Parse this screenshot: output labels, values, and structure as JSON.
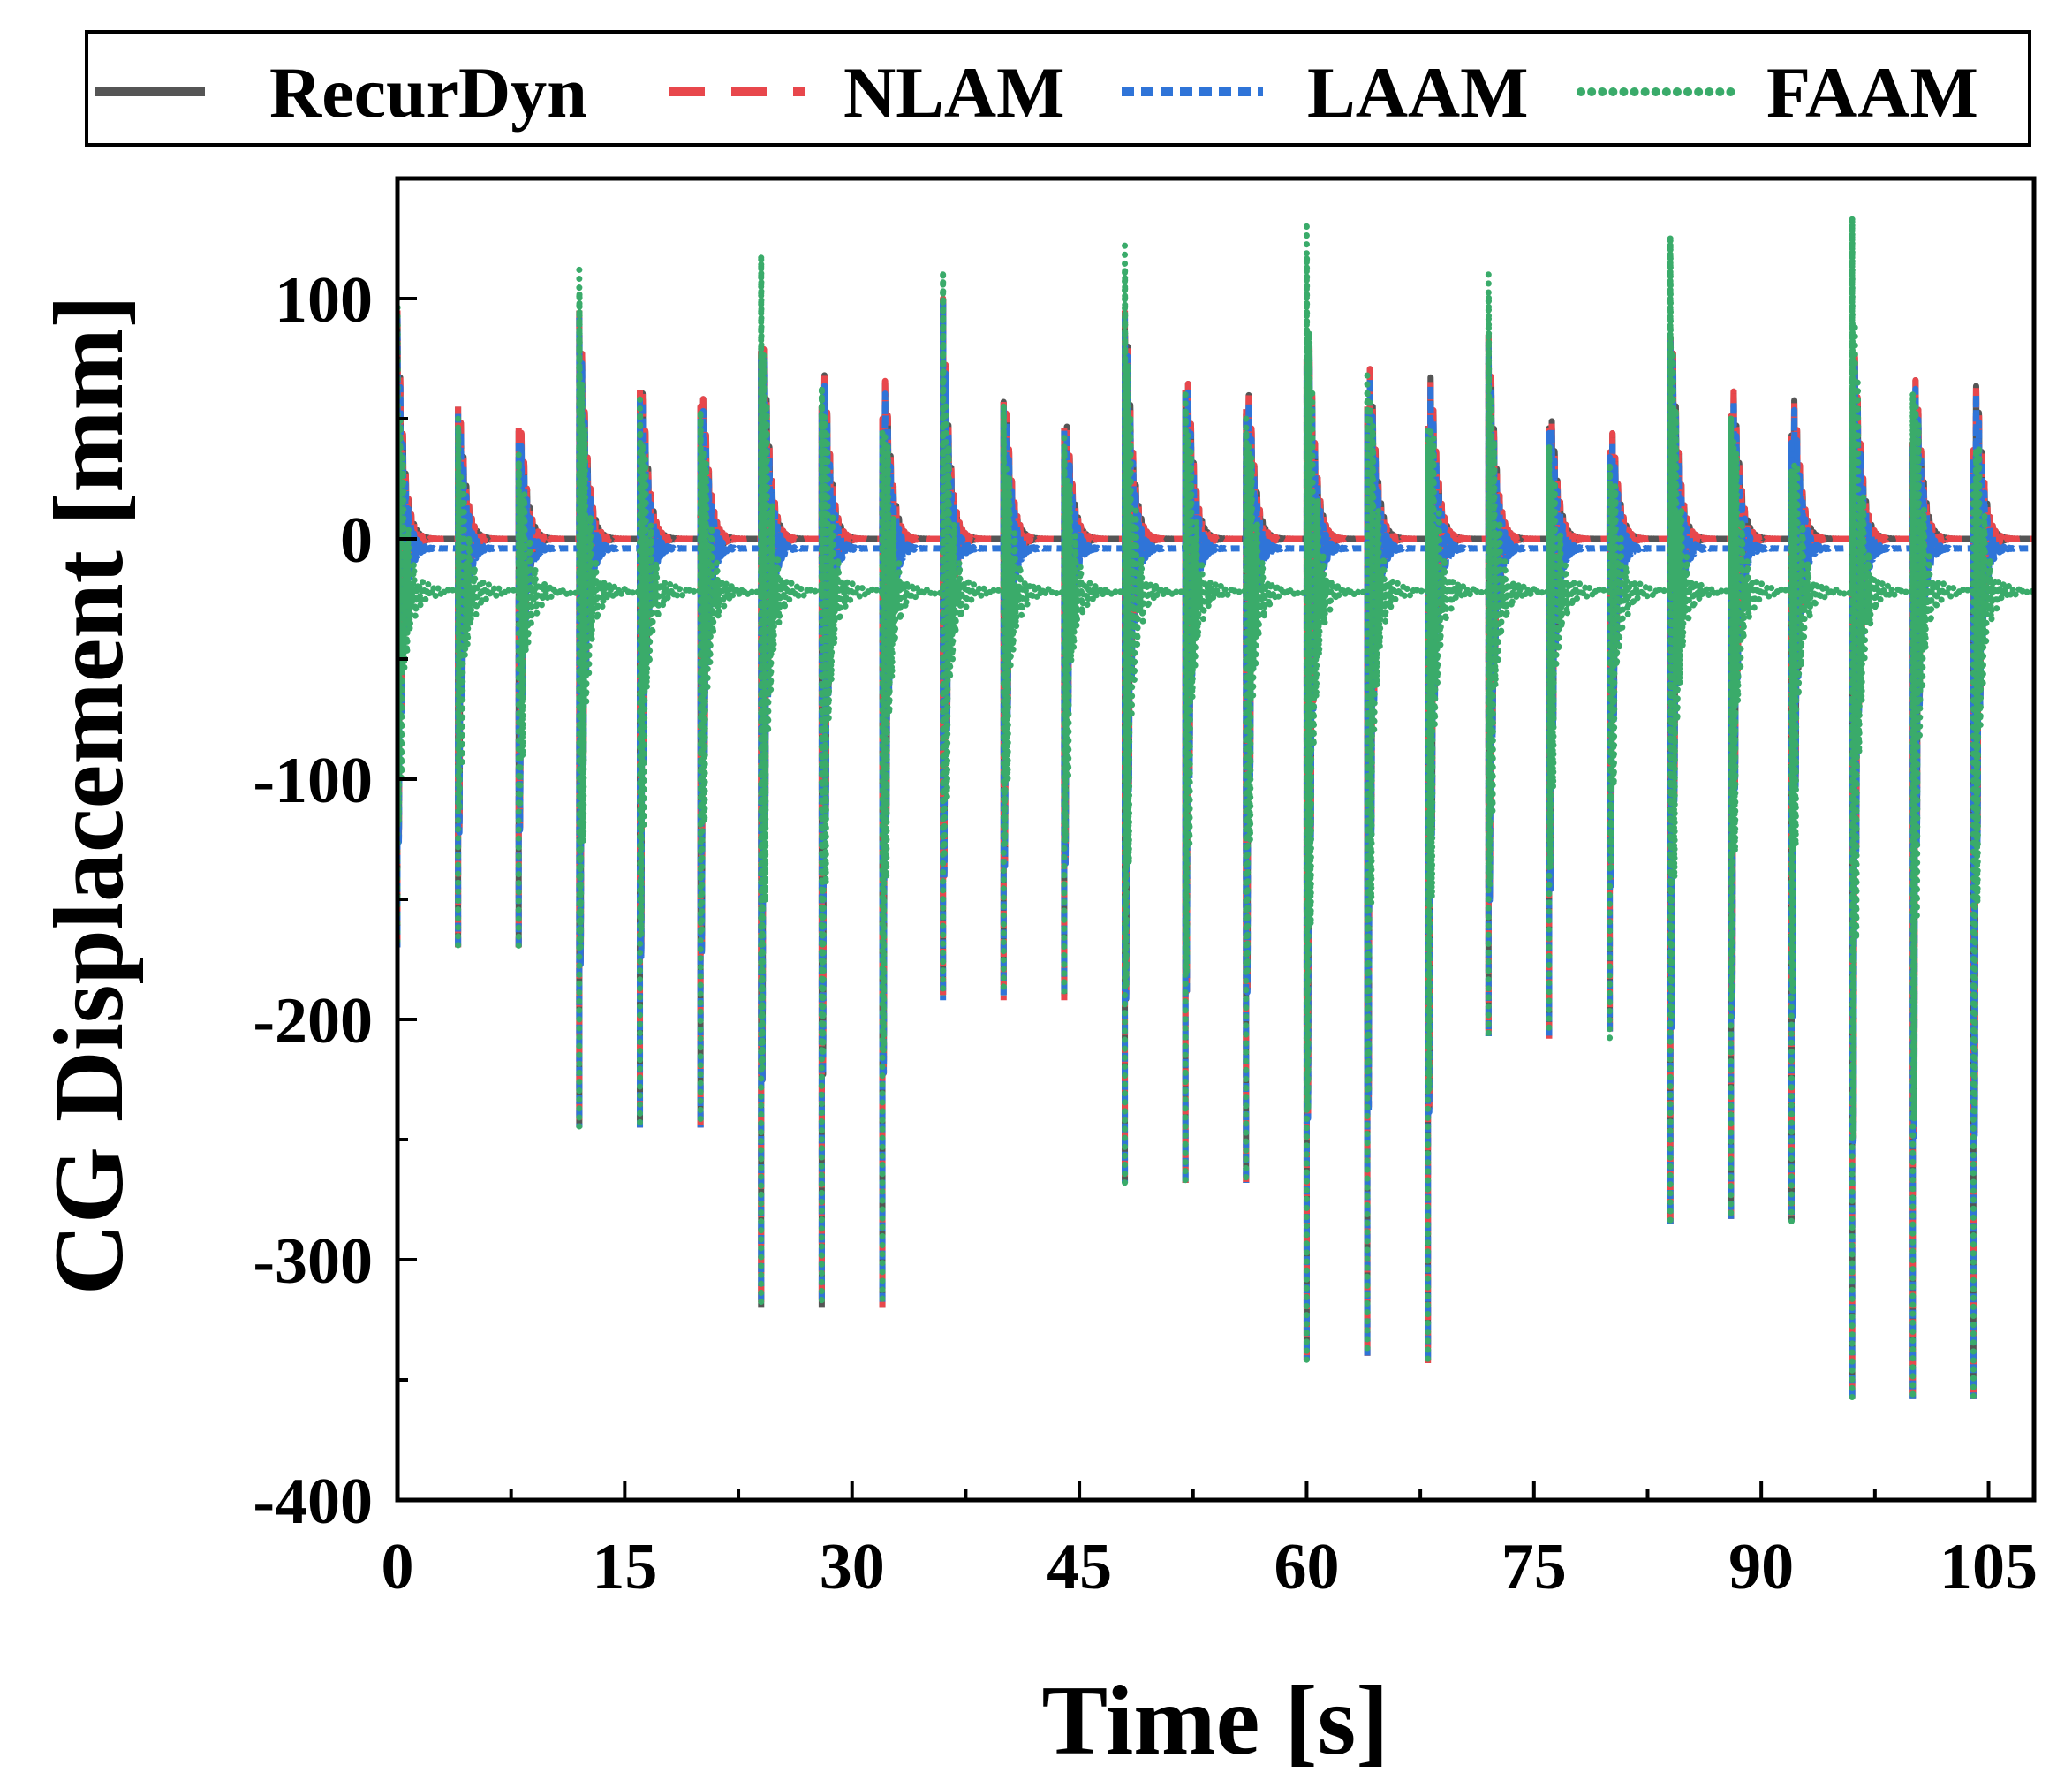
{
  "chart_data": {
    "type": "line",
    "title": "",
    "xlabel": "Time [s]",
    "ylabel": "CG Displacement [mm]",
    "xlim": [
      0,
      108
    ],
    "ylim": [
      -400,
      150
    ],
    "xticks": [
      0,
      15,
      30,
      45,
      60,
      75,
      90,
      105
    ],
    "yticks": [
      -400,
      -300,
      -200,
      -100,
      0,
      100
    ],
    "x_tick_labels": [
      "0",
      "15",
      "30",
      "45",
      "60",
      "75",
      "90",
      "105"
    ],
    "y_tick_labels": [
      "-400",
      "-300",
      "-200",
      "-100",
      "0",
      "100"
    ],
    "grid": false,
    "legend_position": "top",
    "series": [
      {
        "name": "RecurDyn",
        "color": "#555555",
        "style": "solid",
        "baseline": 0,
        "events": [
          {
            "t": 0,
            "peak": 95,
            "trough": -170
          },
          {
            "t": 4,
            "peak": 55,
            "trough": -170
          },
          {
            "t": 8,
            "peak": 45,
            "trough": -170
          },
          {
            "t": 12,
            "peak": 95,
            "trough": -245
          },
          {
            "t": 16,
            "peak": 60,
            "trough": -245
          },
          {
            "t": 20,
            "peak": 55,
            "trough": -245
          },
          {
            "t": 24,
            "peak": 78,
            "trough": -320
          },
          {
            "t": 28,
            "peak": 55,
            "trough": -320
          },
          {
            "t": 32,
            "peak": 48,
            "trough": -320
          },
          {
            "t": 36,
            "peak": 100,
            "trough": -190
          },
          {
            "t": 40,
            "peak": 57,
            "trough": -190
          },
          {
            "t": 44,
            "peak": 46,
            "trough": -190
          },
          {
            "t": 48,
            "peak": 95,
            "trough": -268
          },
          {
            "t": 52,
            "peak": 62,
            "trough": -268
          },
          {
            "t": 56,
            "peak": 52,
            "trough": -268
          },
          {
            "t": 60,
            "peak": 75,
            "trough": -342
          },
          {
            "t": 64,
            "peak": 55,
            "trough": -340
          },
          {
            "t": 68,
            "peak": 47,
            "trough": -342
          },
          {
            "t": 72,
            "peak": 85,
            "trough": -207
          },
          {
            "t": 76,
            "peak": 46,
            "trough": -207
          },
          {
            "t": 80,
            "peak": 36,
            "trough": -205
          },
          {
            "t": 84,
            "peak": 84,
            "trough": -285
          },
          {
            "t": 88,
            "peak": 51,
            "trough": -283
          },
          {
            "t": 92,
            "peak": 43,
            "trough": -284
          },
          {
            "t": 96,
            "peak": 60,
            "trough": -358
          },
          {
            "t": 100,
            "peak": 40,
            "trough": -358
          },
          {
            "t": 104,
            "peak": 35,
            "trough": -358
          }
        ]
      },
      {
        "name": "NLAM",
        "color": "#e8474c",
        "style": "dash",
        "baseline": 0,
        "events": [
          {
            "t": 0,
            "peak": 95,
            "trough": -170
          },
          {
            "t": 4,
            "peak": 55,
            "trough": -170
          },
          {
            "t": 8,
            "peak": 46,
            "trough": -170
          },
          {
            "t": 12,
            "peak": 95,
            "trough": -245
          },
          {
            "t": 16,
            "peak": 62,
            "trough": -245
          },
          {
            "t": 20,
            "peak": 55,
            "trough": -245
          },
          {
            "t": 24,
            "peak": 78,
            "trough": -320
          },
          {
            "t": 28,
            "peak": 55,
            "trough": -320
          },
          {
            "t": 32,
            "peak": 50,
            "trough": -320
          },
          {
            "t": 36,
            "peak": 100,
            "trough": -192
          },
          {
            "t": 40,
            "peak": 57,
            "trough": -192
          },
          {
            "t": 44,
            "peak": 46,
            "trough": -192
          },
          {
            "t": 48,
            "peak": 95,
            "trough": -268
          },
          {
            "t": 52,
            "peak": 62,
            "trough": -268
          },
          {
            "t": 56,
            "peak": 54,
            "trough": -268
          },
          {
            "t": 60,
            "peak": 75,
            "trough": -342
          },
          {
            "t": 64,
            "peak": 55,
            "trough": -340
          },
          {
            "t": 68,
            "peak": 47,
            "trough": -343
          },
          {
            "t": 72,
            "peak": 85,
            "trough": -208
          },
          {
            "t": 76,
            "peak": 46,
            "trough": -208
          },
          {
            "t": 80,
            "peak": 36,
            "trough": -205
          },
          {
            "t": 84,
            "peak": 84,
            "trough": -285
          },
          {
            "t": 88,
            "peak": 51,
            "trough": -283
          },
          {
            "t": 92,
            "peak": 43,
            "trough": -284
          },
          {
            "t": 96,
            "peak": 62,
            "trough": -358
          },
          {
            "t": 100,
            "peak": 40,
            "trough": -358
          },
          {
            "t": 104,
            "peak": 37,
            "trough": -358
          }
        ]
      },
      {
        "name": "LAAM",
        "color": "#2f74d8",
        "style": "dot",
        "baseline": -4,
        "events": [
          {
            "t": 0,
            "peak": 92,
            "trough": -170
          },
          {
            "t": 4,
            "peak": 52,
            "trough": -170
          },
          {
            "t": 8,
            "peak": 40,
            "trough": -170
          },
          {
            "t": 12,
            "peak": 92,
            "trough": -245
          },
          {
            "t": 16,
            "peak": 58,
            "trough": -245
          },
          {
            "t": 20,
            "peak": 50,
            "trough": -245
          },
          {
            "t": 24,
            "peak": 75,
            "trough": -318
          },
          {
            "t": 28,
            "peak": 52,
            "trough": -318
          },
          {
            "t": 32,
            "peak": 45,
            "trough": -318
          },
          {
            "t": 36,
            "peak": 98,
            "trough": -192
          },
          {
            "t": 40,
            "peak": 55,
            "trough": -190
          },
          {
            "t": 44,
            "peak": 45,
            "trough": -190
          },
          {
            "t": 48,
            "peak": 92,
            "trough": -268
          },
          {
            "t": 52,
            "peak": 60,
            "trough": -268
          },
          {
            "t": 56,
            "peak": 50,
            "trough": -268
          },
          {
            "t": 60,
            "peak": 72,
            "trough": -342
          },
          {
            "t": 64,
            "peak": 52,
            "trough": -340
          },
          {
            "t": 68,
            "peak": 45,
            "trough": -342
          },
          {
            "t": 72,
            "peak": 82,
            "trough": -207
          },
          {
            "t": 76,
            "peak": 44,
            "trough": -207
          },
          {
            "t": 80,
            "peak": 34,
            "trough": -205
          },
          {
            "t": 84,
            "peak": 82,
            "trough": -285
          },
          {
            "t": 88,
            "peak": 48,
            "trough": -283
          },
          {
            "t": 92,
            "peak": 40,
            "trough": -284
          },
          {
            "t": 96,
            "peak": 58,
            "trough": -358
          },
          {
            "t": 100,
            "peak": 38,
            "trough": -358
          },
          {
            "t": 104,
            "peak": 33,
            "trough": -358
          }
        ]
      },
      {
        "name": "FAAM",
        "color": "#3aab6a",
        "style": "dot",
        "baseline": -22,
        "events": [
          {
            "t": 0,
            "peak": 100,
            "trough": -170
          },
          {
            "t": 4,
            "peak": 50,
            "trough": -170
          },
          {
            "t": 8,
            "peak": 35,
            "trough": -170
          },
          {
            "t": 12,
            "peak": 112,
            "trough": -245
          },
          {
            "t": 16,
            "peak": 58,
            "trough": -245
          },
          {
            "t": 20,
            "peak": 52,
            "trough": -245
          },
          {
            "t": 24,
            "peak": 117,
            "trough": -318
          },
          {
            "t": 28,
            "peak": 62,
            "trough": -318
          },
          {
            "t": 32,
            "peak": 44,
            "trough": -318
          },
          {
            "t": 36,
            "peak": 110,
            "trough": -190
          },
          {
            "t": 40,
            "peak": 55,
            "trough": -190
          },
          {
            "t": 44,
            "peak": 42,
            "trough": -190
          },
          {
            "t": 48,
            "peak": 122,
            "trough": -268
          },
          {
            "t": 52,
            "peak": 60,
            "trough": -268
          },
          {
            "t": 56,
            "peak": 50,
            "trough": -268
          },
          {
            "t": 60,
            "peak": 130,
            "trough": -342
          },
          {
            "t": 64,
            "peak": 68,
            "trough": -340
          },
          {
            "t": 68,
            "peak": 45,
            "trough": -342
          },
          {
            "t": 72,
            "peak": 110,
            "trough": -207
          },
          {
            "t": 76,
            "peak": 38,
            "trough": -207
          },
          {
            "t": 80,
            "peak": 30,
            "trough": -208
          },
          {
            "t": 84,
            "peak": 125,
            "trough": -285
          },
          {
            "t": 88,
            "peak": 50,
            "trough": -283
          },
          {
            "t": 92,
            "peak": 28,
            "trough": -284
          },
          {
            "t": 96,
            "peak": 133,
            "trough": -358
          },
          {
            "t": 100,
            "peak": 60,
            "trough": -358
          },
          {
            "t": 104,
            "peak": 22,
            "trough": -358
          }
        ]
      }
    ]
  }
}
